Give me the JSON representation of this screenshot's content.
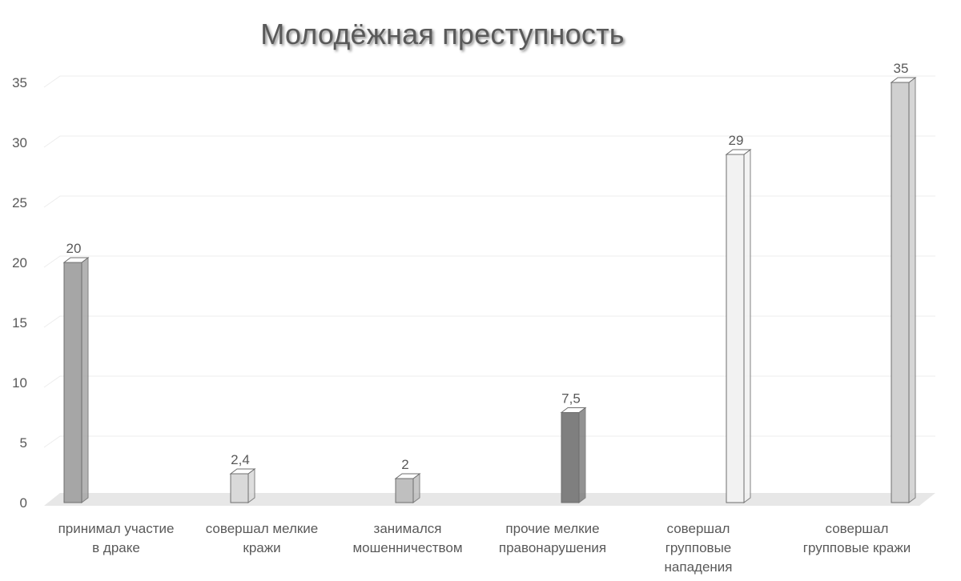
{
  "chart_data": {
    "type": "bar",
    "title": "Молодёжная преступность",
    "xlabel": "",
    "ylabel": "",
    "ylim": [
      0,
      35
    ],
    "yticks": [
      "0",
      "5",
      "10",
      "15",
      "20",
      "25",
      "30",
      "35"
    ],
    "grid": true,
    "categories": [
      [
        "принимал участие",
        "в драке"
      ],
      [
        "совершал мелкие",
        "кражи"
      ],
      [
        "занимался",
        "мошенничеством"
      ],
      [
        "прочие мелкие",
        "правонарушения"
      ],
      [
        "совершал",
        "групповые",
        "нападения"
      ],
      [
        "совершал",
        "групповые кражи"
      ]
    ],
    "values": [
      20,
      2.4,
      2,
      7.5,
      29,
      35
    ],
    "value_labels": [
      "20",
      "2,4",
      "2",
      "7,5",
      "29",
      "35"
    ],
    "colors": [
      "#a6a6a6",
      "#d9d9d9",
      "#bfbfbf",
      "#7f7f7f",
      "#f2f2f2",
      "#d0d0d0"
    ]
  }
}
